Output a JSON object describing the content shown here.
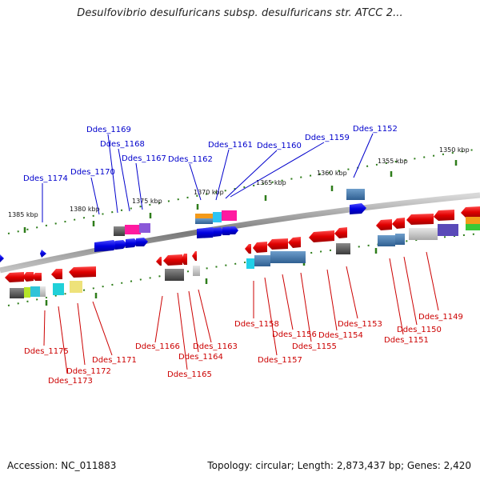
{
  "title": "Desulfovibrio desulfuricans subsp. desulfuricans str. ATCC 2...",
  "footer": {
    "accession": "Accession: NC_011883",
    "summary": "Topology: circular; Length: 2,873,437 bp; Genes: 2,420"
  },
  "scale_labels": [
    "1385 kbp",
    "1380 kbp",
    "1375 kbp",
    "1370 kbp",
    "1365 kbp",
    "1360 kbp",
    "1355 kbp",
    "1350 kbp"
  ],
  "top_strand_genes": [
    "Ddes_1174",
    "Ddes_1170",
    "Ddes_1169",
    "Ddes_1168",
    "Ddes_1167",
    "Ddes_1162",
    "Ddes_1161",
    "Ddes_1160",
    "Ddes_1159",
    "Ddes_1152"
  ],
  "bottom_strand_genes": [
    "Ddes_1175",
    "Ddes_1173",
    "Ddes_1172",
    "Ddes_1171",
    "Ddes_1166",
    "Ddes_1165",
    "Ddes_1164",
    "Ddes_1163",
    "Ddes_1158",
    "Ddes_1157",
    "Ddes_1156",
    "Ddes_1155",
    "Ddes_1154",
    "Ddes_1153",
    "Ddes_1151",
    "Ddes_1150",
    "Ddes_1149"
  ],
  "colors": {
    "top_label": "#0000cc",
    "bottom_label": "#cc0000",
    "backbone": "#888888",
    "tick": "#2e7d1a",
    "gene_forward": "#0000ee",
    "gene_reverse": "#ee0000"
  }
}
